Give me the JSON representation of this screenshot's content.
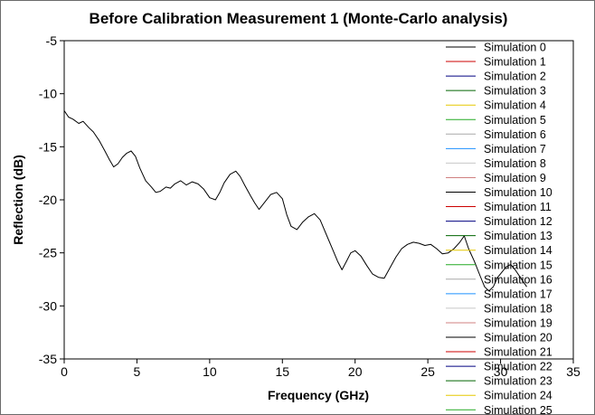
{
  "chart_data": {
    "type": "line",
    "title": "Before Calibration Measurement 1 (Monte-Carlo analysis)",
    "xlabel": "Frequency (GHz)",
    "ylabel": "Reflection (dB)",
    "xlim": [
      0,
      35
    ],
    "ylim": [
      -35,
      -5
    ],
    "xticks": [
      0,
      5,
      10,
      15,
      20,
      25,
      30,
      35
    ],
    "yticks": [
      -5,
      -10,
      -15,
      -20,
      -25,
      -30,
      -35
    ],
    "grid": false,
    "legend_position": "right",
    "series": [
      {
        "name": "Simulation 0",
        "color": "#000000",
        "points": [
          [
            0.0,
            -11.6
          ],
          [
            0.3,
            -12.2
          ],
          [
            0.6,
            -12.4
          ],
          [
            1.0,
            -12.8
          ],
          [
            1.3,
            -12.6
          ],
          [
            1.7,
            -13.2
          ],
          [
            2.0,
            -13.6
          ],
          [
            2.4,
            -14.4
          ],
          [
            2.8,
            -15.4
          ],
          [
            3.1,
            -16.2
          ],
          [
            3.4,
            -16.9
          ],
          [
            3.7,
            -16.6
          ],
          [
            4.0,
            -16.0
          ],
          [
            4.3,
            -15.6
          ],
          [
            4.6,
            -15.4
          ],
          [
            4.9,
            -15.9
          ],
          [
            5.2,
            -17.0
          ],
          [
            5.6,
            -18.2
          ],
          [
            6.0,
            -18.8
          ],
          [
            6.3,
            -19.3
          ],
          [
            6.6,
            -19.2
          ],
          [
            7.0,
            -18.8
          ],
          [
            7.3,
            -18.9
          ],
          [
            7.6,
            -18.5
          ],
          [
            8.0,
            -18.2
          ],
          [
            8.4,
            -18.6
          ],
          [
            8.8,
            -18.3
          ],
          [
            9.2,
            -18.5
          ],
          [
            9.6,
            -19.0
          ],
          [
            10.0,
            -19.8
          ],
          [
            10.4,
            -20.0
          ],
          [
            10.7,
            -19.3
          ],
          [
            11.0,
            -18.4
          ],
          [
            11.4,
            -17.6
          ],
          [
            11.8,
            -17.3
          ],
          [
            12.1,
            -17.8
          ],
          [
            12.4,
            -18.6
          ],
          [
            12.8,
            -19.6
          ],
          [
            13.1,
            -20.3
          ],
          [
            13.4,
            -20.9
          ],
          [
            13.8,
            -20.2
          ],
          [
            14.2,
            -19.5
          ],
          [
            14.6,
            -19.3
          ],
          [
            15.0,
            -19.9
          ],
          [
            15.3,
            -21.4
          ],
          [
            15.6,
            -22.5
          ],
          [
            16.0,
            -22.8
          ],
          [
            16.4,
            -22.1
          ],
          [
            16.8,
            -21.6
          ],
          [
            17.2,
            -21.3
          ],
          [
            17.6,
            -21.9
          ],
          [
            18.0,
            -23.2
          ],
          [
            18.4,
            -24.5
          ],
          [
            18.8,
            -25.8
          ],
          [
            19.1,
            -26.6
          ],
          [
            19.4,
            -25.8
          ],
          [
            19.7,
            -25.0
          ],
          [
            20.0,
            -24.8
          ],
          [
            20.4,
            -25.3
          ],
          [
            20.8,
            -26.2
          ],
          [
            21.2,
            -27.0
          ],
          [
            21.6,
            -27.3
          ],
          [
            22.0,
            -27.4
          ],
          [
            22.4,
            -26.4
          ],
          [
            22.8,
            -25.4
          ],
          [
            23.2,
            -24.6
          ],
          [
            23.6,
            -24.2
          ],
          [
            24.0,
            -24.0
          ],
          [
            24.4,
            -24.1
          ],
          [
            24.8,
            -24.3
          ],
          [
            25.2,
            -24.2
          ],
          [
            25.6,
            -24.6
          ],
          [
            26.0,
            -25.1
          ],
          [
            26.4,
            -25.0
          ],
          [
            26.8,
            -24.6
          ],
          [
            27.2,
            -24.0
          ],
          [
            27.5,
            -23.4
          ],
          [
            27.8,
            -24.6
          ],
          [
            28.2,
            -25.8
          ],
          [
            28.6,
            -27.2
          ],
          [
            28.9,
            -28.2
          ],
          [
            29.2,
            -28.6
          ],
          [
            29.5,
            -28.2
          ],
          [
            29.8,
            -27.3
          ],
          [
            30.1,
            -26.8
          ],
          [
            30.4,
            -26.3
          ],
          [
            30.7,
            -26.1
          ],
          [
            31.0,
            -26.6
          ],
          [
            31.4,
            -27.4
          ],
          [
            31.8,
            -28.2
          ]
        ]
      },
      {
        "name": "Simulation 1",
        "color": "#cc0000"
      },
      {
        "name": "Simulation 2",
        "color": "#000080"
      },
      {
        "name": "Simulation 3",
        "color": "#006400"
      },
      {
        "name": "Simulation 4",
        "color": "#e6c800"
      },
      {
        "name": "Simulation 5",
        "color": "#22aa22"
      },
      {
        "name": "Simulation 6",
        "color": "#a8a8a8"
      },
      {
        "name": "Simulation 7",
        "color": "#1e90ff"
      },
      {
        "name": "Simulation 8",
        "color": "#c8c8c8"
      },
      {
        "name": "Simulation 9",
        "color": "#d08080"
      },
      {
        "name": "Simulation 10",
        "color": "#000000"
      },
      {
        "name": "Simulation 11",
        "color": "#cc0000"
      },
      {
        "name": "Simulation 12",
        "color": "#000080"
      },
      {
        "name": "Simulation 13",
        "color": "#006400"
      },
      {
        "name": "Simulation 14",
        "color": "#e6c800"
      },
      {
        "name": "Simulation 15",
        "color": "#22aa22"
      },
      {
        "name": "Simulation 16",
        "color": "#a8a8a8"
      },
      {
        "name": "Simulation 17",
        "color": "#1e90ff"
      },
      {
        "name": "Simulation 18",
        "color": "#c8c8c8"
      },
      {
        "name": "Simulation 19",
        "color": "#d08080"
      },
      {
        "name": "Simulation 20",
        "color": "#000000"
      },
      {
        "name": "Simulation 21",
        "color": "#cc0000"
      },
      {
        "name": "Simulation 22",
        "color": "#000080"
      },
      {
        "name": "Simulation 23",
        "color": "#006400"
      },
      {
        "name": "Simulation 24",
        "color": "#e6c800"
      },
      {
        "name": "Simulation 25",
        "color": "#22aa22"
      }
    ]
  }
}
